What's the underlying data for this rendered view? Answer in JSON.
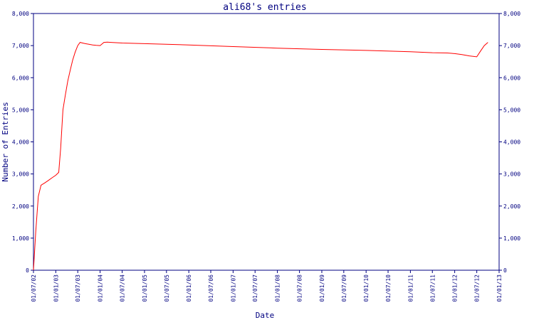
{
  "chart_data": {
    "type": "line",
    "title": "ali68's entries",
    "xlabel": "Date",
    "ylabel": "Number of Entries",
    "ylim": [
      0,
      8000
    ],
    "y_ticks": [
      "0",
      "1,000",
      "2,000",
      "3,000",
      "4,000",
      "5,000",
      "6,000",
      "7,000",
      "8,000"
    ],
    "x_ticks": [
      "01/07/02",
      "01/01/03",
      "01/07/03",
      "01/01/04",
      "01/07/04",
      "01/01/05",
      "01/07/05",
      "01/01/06",
      "01/07/06",
      "01/01/07",
      "01/07/07",
      "01/01/08",
      "01/07/08",
      "01/01/09",
      "01/07/09",
      "01/01/10",
      "01/07/10",
      "01/01/11",
      "01/07/11",
      "01/01/12",
      "01/07/12",
      "01/01/13"
    ],
    "xlim": [
      "2002-07-01",
      "2013-01-01"
    ],
    "grid": false,
    "line_color": "#ff0000",
    "axis_color": "#000080",
    "series": [
      {
        "x": [
          "2002-07-01",
          "2002-07-20",
          "2002-08-10",
          "2002-09-01",
          "2002-10-01",
          "2002-11-01",
          "2002-12-01",
          "2003-01-01",
          "2003-01-25",
          "2003-02-10",
          "2003-03-01",
          "2003-03-20",
          "2003-04-10",
          "2003-05-01",
          "2003-05-20",
          "2003-06-10",
          "2003-07-01",
          "2003-07-20",
          "2003-08-10",
          "2003-09-01",
          "2003-10-01",
          "2003-11-01",
          "2003-12-01",
          "2004-01-01",
          "2004-02-01",
          "2004-03-01",
          "2004-04-01",
          "2004-07-01",
          "2005-01-01",
          "2006-01-01",
          "2007-01-01",
          "2008-01-01",
          "2009-01-01",
          "2010-01-01",
          "2011-01-01",
          "2011-07-01",
          "2011-11-01",
          "2012-01-01",
          "2012-03-01",
          "2012-05-01",
          "2012-07-01",
          "2012-08-01",
          "2012-09-01",
          "2012-10-01"
        ],
        "y": [
          0,
          1200,
          2300,
          2650,
          2720,
          2800,
          2880,
          2960,
          3050,
          3800,
          5000,
          5450,
          5900,
          6250,
          6550,
          6800,
          7000,
          7100,
          7080,
          7060,
          7040,
          7020,
          7010,
          7000,
          7100,
          7110,
          7100,
          7080,
          7060,
          7020,
          6970,
          6920,
          6880,
          6850,
          6810,
          6780,
          6770,
          6750,
          6720,
          6680,
          6650,
          6830,
          7000,
          7100
        ]
      }
    ]
  }
}
